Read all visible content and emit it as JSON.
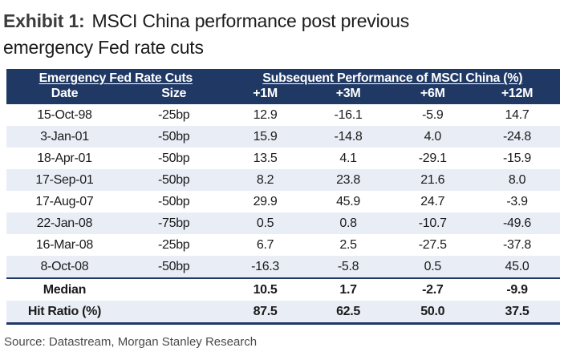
{
  "title": {
    "prefix": "Exhibit 1:",
    "line1": "MSCI China performance post previous",
    "line2": "emergency Fed rate cuts"
  },
  "table": {
    "group_headers": [
      {
        "label": "Emergency Fed Rate Cuts",
        "span": 2
      },
      {
        "label": "Subsequent Performance of MSCI China (%)",
        "span": 4
      }
    ],
    "columns": [
      "Date",
      "Size",
      "+1M",
      "+3M",
      "+6M",
      "+12M"
    ],
    "rows": [
      [
        "15-Oct-98",
        "-25bp",
        "12.9",
        "-16.1",
        "-5.9",
        "14.7"
      ],
      [
        "3-Jan-01",
        "-50bp",
        "15.9",
        "-14.8",
        "4.0",
        "-24.8"
      ],
      [
        "18-Apr-01",
        "-50bp",
        "13.5",
        "4.1",
        "-29.1",
        "-15.9"
      ],
      [
        "17-Sep-01",
        "-50bp",
        "8.2",
        "23.8",
        "21.6",
        "8.0"
      ],
      [
        "17-Aug-07",
        "-50bp",
        "29.9",
        "45.9",
        "24.7",
        "-3.9"
      ],
      [
        "22-Jan-08",
        "-75bp",
        "0.5",
        "0.8",
        "-10.7",
        "-49.6"
      ],
      [
        "16-Mar-08",
        "-25bp",
        "6.7",
        "2.5",
        "-27.5",
        "-37.8"
      ],
      [
        "8-Oct-08",
        "-50bp",
        "-16.3",
        "-5.8",
        "0.5",
        "45.0"
      ]
    ],
    "summary_rows": [
      {
        "label": "Median",
        "values": [
          "10.5",
          "1.7",
          "-2.7",
          "-9.9"
        ]
      },
      {
        "label": "Hit Ratio (%)",
        "values": [
          "87.5",
          "62.5",
          "50.0",
          "37.5"
        ]
      }
    ]
  },
  "source": "Source: Datastream, Morgan Stanley Research",
  "colors": {
    "header_bg": "#1F3864",
    "row_alt_bg": "#E9EEF6",
    "divider": "#1F3864",
    "text": "#1a1a1a",
    "source_text": "#4a4a4a"
  },
  "chart_data": {
    "type": "table",
    "title": "MSCI China performance post previous emergency Fed rate cuts",
    "column_groups": [
      "Emergency Fed Rate Cuts",
      "Subsequent Performance of MSCI China (%)"
    ],
    "columns": [
      "Date",
      "Size",
      "+1M",
      "+3M",
      "+6M",
      "+12M"
    ],
    "rows": [
      [
        "15-Oct-98",
        "-25bp",
        12.9,
        -16.1,
        -5.9,
        14.7
      ],
      [
        "3-Jan-01",
        "-50bp",
        15.9,
        -14.8,
        4.0,
        -24.8
      ],
      [
        "18-Apr-01",
        "-50bp",
        13.5,
        4.1,
        -29.1,
        -15.9
      ],
      [
        "17-Sep-01",
        "-50bp",
        8.2,
        23.8,
        21.6,
        8.0
      ],
      [
        "17-Aug-07",
        "-50bp",
        29.9,
        45.9,
        24.7,
        -3.9
      ],
      [
        "22-Jan-08",
        "-75bp",
        0.5,
        0.8,
        -10.7,
        -49.6
      ],
      [
        "16-Mar-08",
        "-25bp",
        6.7,
        2.5,
        -27.5,
        -37.8
      ],
      [
        "8-Oct-08",
        "-50bp",
        -16.3,
        -5.8,
        0.5,
        45.0
      ]
    ],
    "median": [
      10.5,
      1.7,
      -2.7,
      -9.9
    ],
    "hit_ratio_pct": [
      87.5,
      62.5,
      50.0,
      37.5
    ],
    "source": "Source: Datastream, Morgan Stanley Research"
  }
}
